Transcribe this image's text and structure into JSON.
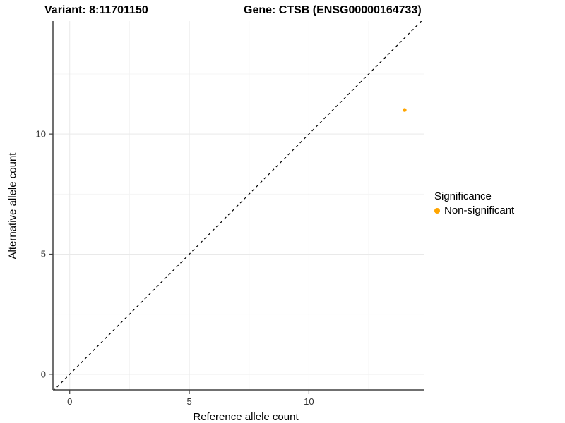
{
  "titles": {
    "variant": "Variant: 8:11701150",
    "gene": "Gene: CTSB (ENSG00000164733)"
  },
  "chart_data": {
    "type": "scatter",
    "xlabel": "Reference allele count",
    "ylabel": "Alternative allele count",
    "xlim": [
      -0.7,
      14.8
    ],
    "ylim": [
      -0.65,
      14.7
    ],
    "x_ticks": [
      0,
      5,
      10
    ],
    "y_ticks": [
      0,
      5,
      10
    ],
    "x_minor_ticks": [
      2.5,
      7.5,
      12.5
    ],
    "y_minor_ticks": [
      2.5,
      7.5,
      12.5
    ],
    "grid": true,
    "identity_line": {
      "style": "dashed",
      "color": "#000000",
      "equation": "y = x"
    },
    "series": [
      {
        "name": "Non-significant",
        "color": "#FFA500",
        "points": [
          {
            "x": 14,
            "y": 11
          }
        ]
      }
    ],
    "legend": {
      "title": "Significance",
      "position": "right",
      "entries": [
        {
          "label": "Non-significant",
          "color": "#FFA500"
        }
      ]
    }
  },
  "colors": {
    "point_orange": "#FFA500",
    "axis_line": "#404040",
    "grid_major": "#e9e9e9",
    "grid_minor": "#f4f4f4",
    "tick_text": "#333333"
  }
}
